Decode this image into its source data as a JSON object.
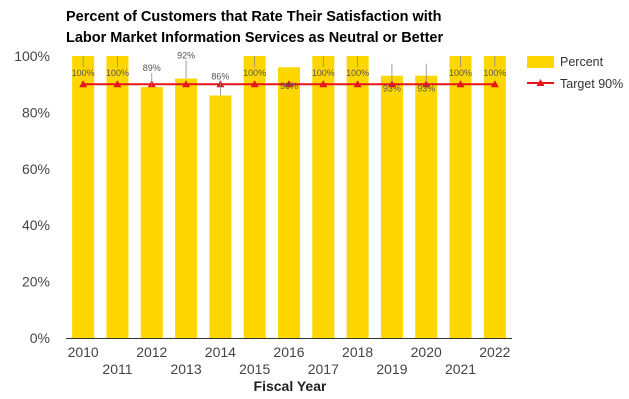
{
  "chart_data": {
    "type": "bar",
    "title": "Percent of Customers that Rate Their Satisfaction with Labor Market Information Services as Neutral or Better",
    "title_lines": [
      "Percent of Customers that Rate Their Satisfaction with",
      "Labor Market Information Services as Neutral or Better"
    ],
    "xlabel": "Fiscal Year",
    "ylabel": "",
    "categories": [
      "2010",
      "2011",
      "2012",
      "2013",
      "2014",
      "2015",
      "2016",
      "2017",
      "2018",
      "2019",
      "2020",
      "2021",
      "2022"
    ],
    "ylim": [
      0,
      100
    ],
    "yticks": [
      0,
      20,
      40,
      60,
      80,
      100
    ],
    "ytick_labels": [
      "0%",
      "20%",
      "40%",
      "60%",
      "80%",
      "100%"
    ],
    "grid": false,
    "legend_position": "right",
    "series": [
      {
        "name": "Percent",
        "type": "bar",
        "color": "#FFD700",
        "values": [
          100,
          100,
          89,
          92,
          86,
          100,
          96,
          100,
          100,
          93,
          93,
          100,
          100
        ],
        "labels": [
          "100%",
          "100%",
          "89%",
          "92%",
          "86%",
          "100%",
          "96%",
          "100%",
          "100%",
          "93%",
          "93%",
          "100%",
          "100%"
        ]
      },
      {
        "name": "Target 90%",
        "type": "line",
        "color": "#E8141C",
        "marker": "triangle",
        "values": [
          90,
          90,
          90,
          90,
          90,
          90,
          90,
          90,
          90,
          90,
          90,
          90,
          90
        ]
      }
    ]
  }
}
